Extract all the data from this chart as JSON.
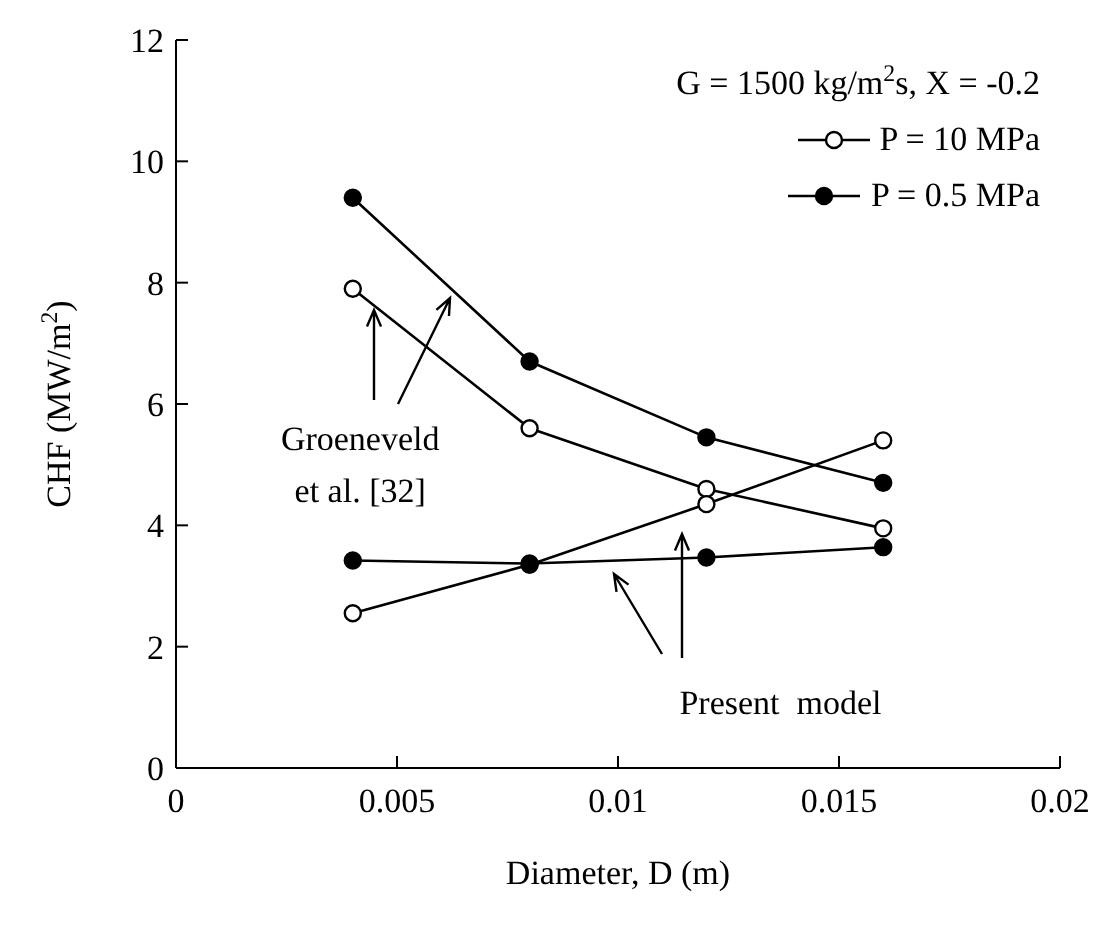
{
  "chart_data": {
    "type": "line",
    "xlabel": "Diameter, D (m)",
    "ylabel": "CHF (MW/m$^{2}$)",
    "legend_title": "G = 1500 kg/m$^{2}$s, X = -0.2",
    "x": [
      0.004,
      0.008,
      0.012,
      0.016
    ],
    "series": [
      {
        "name": "P = 10 MPa",
        "color": "#000000",
        "marker": "circle-open",
        "values": [
          7.9,
          5.6,
          4.6,
          3.95
        ]
      },
      {
        "name": "P = 0.5 MPa",
        "color": "#000000",
        "marker": "circle",
        "values": [
          9.4,
          6.7,
          5.45,
          4.7
        ]
      },
      {
        "color": "#000000",
        "marker": "circle-open",
        "values": [
          2.55,
          3.35,
          4.35,
          5.4
        ]
      },
      {
        "color": "#000000",
        "marker": "circle",
        "values": [
          3.42,
          3.37,
          3.47,
          3.64
        ]
      }
    ],
    "annotations": [
      {
        "text": "Groeneveld\net al. [32]",
        "x": 0.0045,
        "y": 7.6
      },
      {
        "text": "Present  model",
        "x": 0.0113,
        "y": 4.0
      }
    ],
    "xlim": [
      0,
      0.02
    ],
    "xticks": [
      0,
      0.005,
      0.01,
      0.015,
      0.02
    ],
    "ylim": [
      0,
      12
    ],
    "yticks": [
      0,
      2,
      4,
      6,
      8,
      10,
      12
    ],
    "marker": "circle",
    "line_style": "solid",
    "legend": "top right",
    "grid": false
  }
}
